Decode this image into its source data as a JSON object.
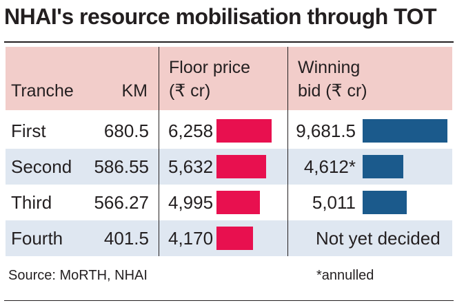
{
  "title": "NHAI's resource mobilisation through TOT",
  "colors": {
    "floor_bar": "#e8104f",
    "winning_bar": "#1b5a8c",
    "header_bg": "#f2cdca",
    "alt_row_bg": "#dfe7f1"
  },
  "headers": {
    "tranche": "Tranche",
    "km": "KM",
    "floor_line1": "Floor price",
    "floor_line2": "(₹ cr)",
    "winning_line1": "Winning",
    "winning_line2": "bid (₹ cr)"
  },
  "rows": [
    {
      "tranche": "First",
      "km": "680.5",
      "floor": "6,258",
      "winning": "9,681.5"
    },
    {
      "tranche": "Second",
      "km": "586.55",
      "floor": "5,632",
      "winning": "4,612*"
    },
    {
      "tranche": "Third",
      "km": "566.27",
      "floor": "4,995",
      "winning": "5,011"
    },
    {
      "tranche": "Fourth",
      "km": "401.5",
      "floor": "4,170",
      "winning": "Not yet decided"
    }
  ],
  "source": "Source: MoRTH, NHAI",
  "footnote": "*annulled",
  "chart_data": {
    "type": "table",
    "title": "NHAI's resource mobilisation through TOT",
    "columns": [
      "Tranche",
      "KM",
      "Floor price (₹ cr)",
      "Winning bid (₹ cr)"
    ],
    "categories": [
      "First",
      "Second",
      "Third",
      "Fourth"
    ],
    "series": [
      {
        "name": "KM",
        "values": [
          680.5,
          586.55,
          566.27,
          401.5
        ]
      },
      {
        "name": "Floor price (₹ cr)",
        "values": [
          6258,
          5632,
          4995,
          4170
        ]
      },
      {
        "name": "Winning bid (₹ cr)",
        "values": [
          9681.5,
          4612,
          5011,
          null
        ]
      }
    ],
    "notes": [
      "Second tranche winning bid annulled",
      "Fourth tranche winning bid not yet decided"
    ]
  }
}
